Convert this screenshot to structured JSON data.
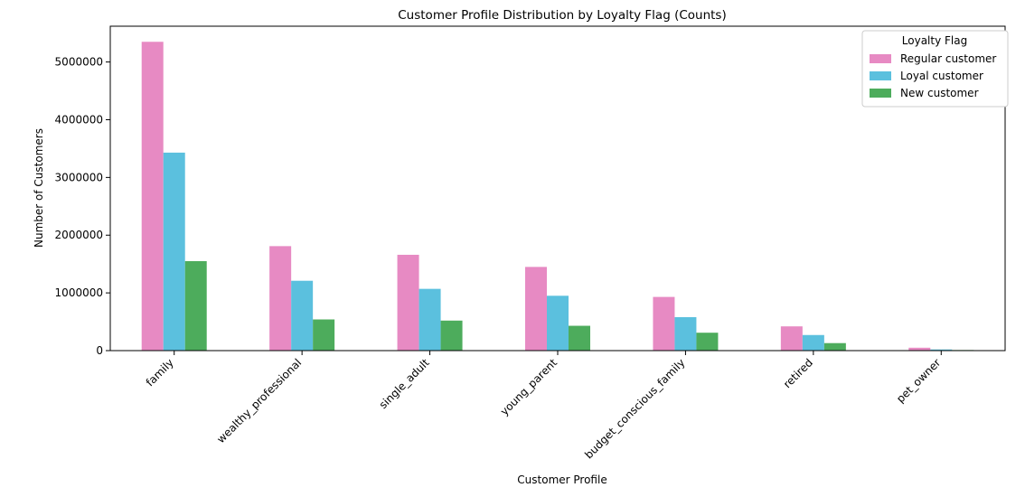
{
  "chart_data": {
    "type": "bar",
    "title": "Customer Profile Distribution by Loyalty Flag (Counts)",
    "xlabel": "Customer Profile",
    "ylabel": "Number of Customers",
    "categories": [
      "family",
      "wealthy_professional",
      "single_adult",
      "young_parent",
      "budget_conscious_family",
      "retired",
      "pet_owner"
    ],
    "series": [
      {
        "name": "Regular customer",
        "color": "#e78ac3",
        "values": [
          5350000,
          1810000,
          1660000,
          1450000,
          930000,
          420000,
          50000
        ]
      },
      {
        "name": "Loyal customer",
        "color": "#5bc0de",
        "values": [
          3430000,
          1210000,
          1070000,
          950000,
          580000,
          270000,
          20000
        ]
      },
      {
        "name": "New customer",
        "color": "#4dac5c",
        "values": [
          1550000,
          540000,
          520000,
          430000,
          310000,
          130000,
          10000
        ]
      }
    ],
    "ylim": [
      0,
      5620000
    ],
    "yticks": [
      0,
      1000000,
      2000000,
      3000000,
      4000000,
      5000000
    ],
    "ytick_labels": [
      "0",
      "1000000",
      "2000000",
      "3000000",
      "4000000",
      "5000000"
    ],
    "legend": {
      "title": "Loyalty Flag",
      "placement": "top-right"
    },
    "grid": false
  }
}
